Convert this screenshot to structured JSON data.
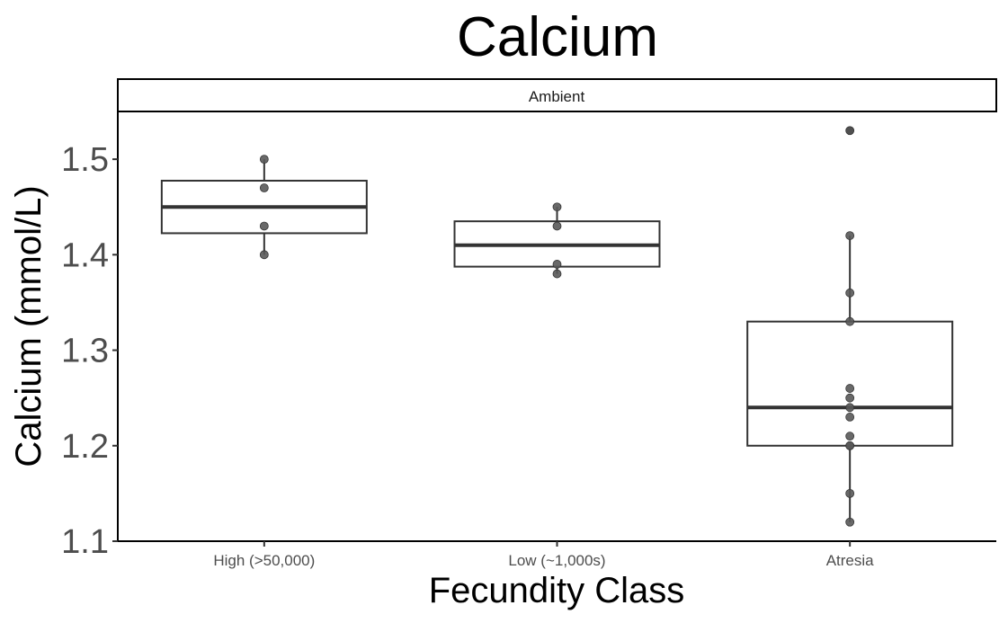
{
  "chart_data": {
    "type": "box",
    "title": "Calcium",
    "facet": "Ambient",
    "xlabel": "Fecundity Class",
    "ylabel": "Calcium (mmol/L)",
    "ylim": [
      1.1,
      1.55
    ],
    "yticks": [
      "1.1",
      "1.2",
      "1.3",
      "1.4",
      "1.5"
    ],
    "ytick_values": [
      1.1,
      1.2,
      1.3,
      1.4,
      1.5
    ],
    "grid": false,
    "categories": [
      "High (>50,000)",
      "Low (~1,000s)",
      "Atresia"
    ],
    "boxes": [
      {
        "category": "High (>50,000)",
        "min": 1.4,
        "q1": 1.4225,
        "median": 1.45,
        "q3": 1.4775,
        "max": 1.5,
        "points": [
          1.4,
          1.43,
          1.47,
          1.5
        ]
      },
      {
        "category": "Low (~1,000s)",
        "min": 1.38,
        "q1": 1.3875,
        "median": 1.41,
        "q3": 1.435,
        "max": 1.45,
        "points": [
          1.38,
          1.39,
          1.43,
          1.45
        ]
      },
      {
        "category": "Atresia",
        "min": 1.12,
        "q1": 1.2,
        "median": 1.24,
        "q3": 1.33,
        "max": 1.42,
        "outliers": [
          1.53
        ],
        "points": [
          1.12,
          1.15,
          1.2,
          1.2,
          1.21,
          1.23,
          1.24,
          1.25,
          1.26,
          1.33,
          1.36,
          1.42,
          1.53
        ]
      }
    ],
    "colors": {
      "box": "#333333",
      "point": "#595959",
      "outlier": "#000000"
    }
  }
}
